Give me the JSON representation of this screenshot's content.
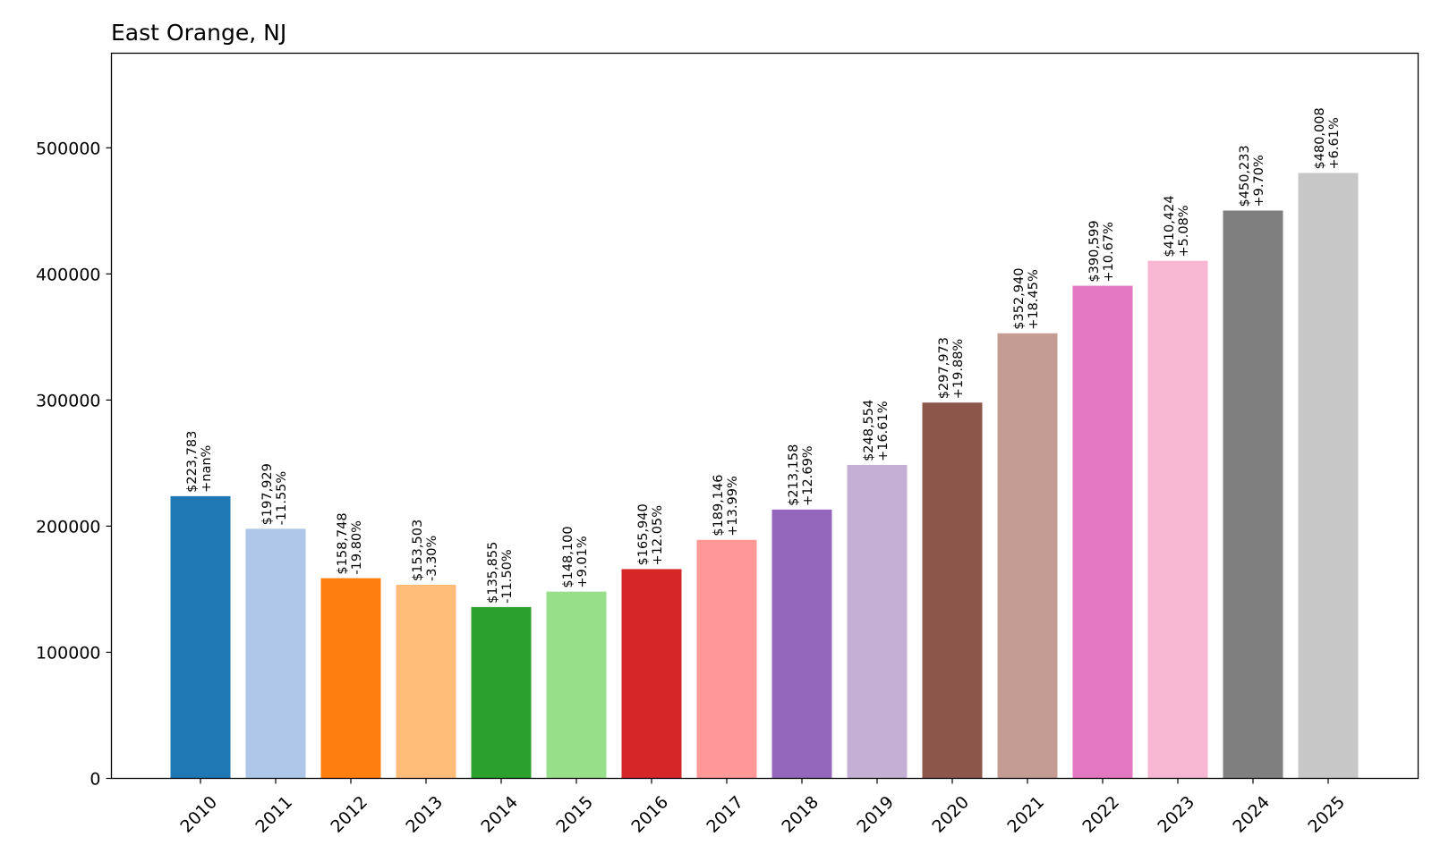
{
  "chart_data": {
    "type": "bar",
    "title": "East Orange, NJ",
    "xlabel": "",
    "ylabel": "",
    "ylim": [
      0,
      575000
    ],
    "yticks": [
      0,
      100000,
      200000,
      300000,
      400000,
      500000
    ],
    "ytick_labels": [
      "0",
      "100000",
      "200000",
      "300000",
      "400000",
      "500000"
    ],
    "grid": false,
    "legend": "none",
    "categories": [
      "2010",
      "2011",
      "2012",
      "2013",
      "2014",
      "2015",
      "2016",
      "2017",
      "2018",
      "2019",
      "2020",
      "2021",
      "2022",
      "2023",
      "2024",
      "2025"
    ],
    "values": [
      223783,
      197929,
      158748,
      153503,
      135855,
      148100,
      165940,
      189146,
      213158,
      248554,
      297973,
      352940,
      390599,
      410424,
      450233,
      480008
    ],
    "value_labels": [
      "$223,783",
      "$197,929",
      "$158,748",
      "$153,503",
      "$135,855",
      "$148,100",
      "$165,940",
      "$189,146",
      "$213,158",
      "$248,554",
      "$297,973",
      "$352,940",
      "$390,599",
      "$410,424",
      "$450,233",
      "$480,008"
    ],
    "change_labels": [
      "+nan%",
      "-11.55%",
      "-19.80%",
      "-3.30%",
      "-11.50%",
      "+9.01%",
      "+12.05%",
      "+13.99%",
      "+12.69%",
      "+16.61%",
      "+19.88%",
      "+18.45%",
      "+10.67%",
      "+5.08%",
      "+9.70%",
      "+6.61%"
    ],
    "colors": [
      "#1f77b4",
      "#aec7e8",
      "#ff7f0e",
      "#ffbb78",
      "#2ca02c",
      "#98df8a",
      "#d62728",
      "#ff9896",
      "#9467bd",
      "#c5b0d5",
      "#8c564b",
      "#c49c94",
      "#e377c2",
      "#f7b6d2",
      "#7f7f7f",
      "#c7c7c7"
    ]
  }
}
